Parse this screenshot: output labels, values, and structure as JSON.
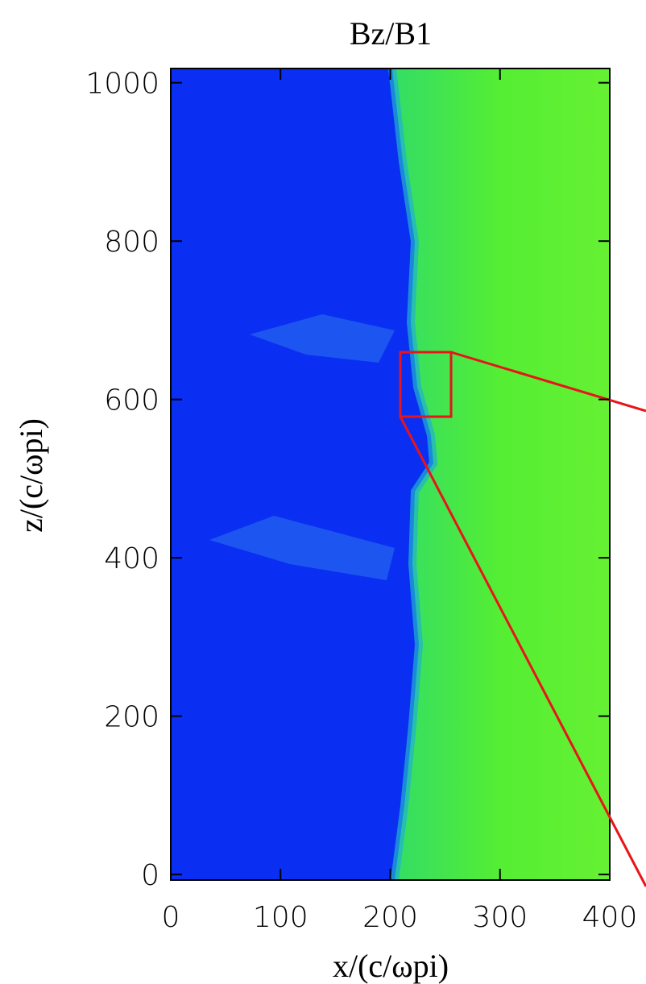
{
  "chart_data": {
    "type": "heatmap",
    "title": "Bz/B1",
    "x_label": "x/(c/ωpi)",
    "y_label": "z/(c/ωpi)",
    "xlim": [
      0,
      400
    ],
    "xticks": [
      0,
      100,
      200,
      300,
      400
    ],
    "ylim": [
      -7,
      1018
    ],
    "yticks": [
      0,
      200,
      400,
      600,
      800,
      1000
    ]
  }
}
